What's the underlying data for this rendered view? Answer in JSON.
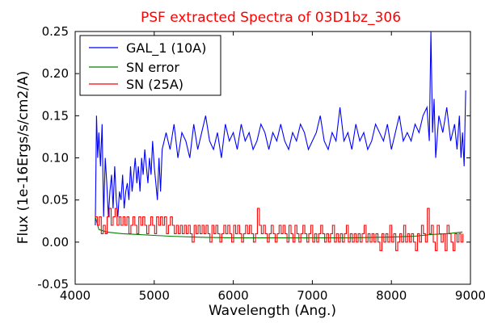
{
  "chart_data": {
    "type": "line",
    "title": "PSF extracted Spectra of 03D1bz_306",
    "title_color": "#ff0000",
    "xlabel": "Wavelength (Ang.)",
    "ylabel": "Flux (1e-16Ergs/s/cm2/A)",
    "xlim": [
      4000,
      9000
    ],
    "ylim": [
      -0.05,
      0.25
    ],
    "x_ticks": [
      4000,
      5000,
      6000,
      7000,
      8000,
      9000
    ],
    "y_ticks": [
      -0.05,
      0.0,
      0.05,
      0.1,
      0.15,
      0.2,
      0.25
    ],
    "x_tick_labels": [
      "4000",
      "5000",
      "6000",
      "7000",
      "8000",
      "9000"
    ],
    "y_tick_labels": [
      "-0.05",
      "0.00",
      "0.05",
      "0.10",
      "0.15",
      "0.20",
      "0.25"
    ],
    "grid": false,
    "legend_placement": "top-left",
    "series": [
      {
        "name": "GAL_1 (10A)",
        "color": "#0000ff",
        "step": false,
        "x": [
          4255,
          4270,
          4285,
          4300,
          4320,
          4340,
          4360,
          4380,
          4400,
          4420,
          4440,
          4460,
          4480,
          4500,
          4520,
          4540,
          4560,
          4580,
          4600,
          4620,
          4640,
          4660,
          4680,
          4700,
          4720,
          4740,
          4760,
          4780,
          4800,
          4820,
          4840,
          4860,
          4880,
          4900,
          4920,
          4940,
          4960,
          4980,
          5000,
          5020,
          5040,
          5060,
          5080,
          5100,
          5150,
          5200,
          5250,
          5300,
          5350,
          5400,
          5450,
          5500,
          5550,
          5600,
          5650,
          5700,
          5750,
          5800,
          5850,
          5900,
          5950,
          6000,
          6050,
          6100,
          6150,
          6200,
          6250,
          6300,
          6350,
          6400,
          6450,
          6500,
          6550,
          6600,
          6650,
          6700,
          6750,
          6800,
          6850,
          6900,
          6950,
          7000,
          7050,
          7100,
          7150,
          7200,
          7250,
          7300,
          7350,
          7400,
          7450,
          7500,
          7550,
          7600,
          7650,
          7700,
          7750,
          7800,
          7850,
          7900,
          7950,
          8000,
          8050,
          8100,
          8150,
          8200,
          8250,
          8300,
          8350,
          8400,
          8450,
          8480,
          8500,
          8520,
          8540,
          8560,
          8600,
          8650,
          8700,
          8750,
          8800,
          8830,
          8860,
          8880,
          8900,
          8920,
          8940
        ],
        "values": [
          0.02,
          0.15,
          0.1,
          0.13,
          0.09,
          0.14,
          0.03,
          0.1,
          0.07,
          0.03,
          0.06,
          0.08,
          0.04,
          0.09,
          0.05,
          0.03,
          0.06,
          0.05,
          0.08,
          0.04,
          0.06,
          0.07,
          0.05,
          0.09,
          0.06,
          0.08,
          0.1,
          0.07,
          0.09,
          0.06,
          0.1,
          0.08,
          0.11,
          0.09,
          0.07,
          0.1,
          0.08,
          0.12,
          0.09,
          0.07,
          0.05,
          0.1,
          0.06,
          0.11,
          0.13,
          0.11,
          0.14,
          0.1,
          0.13,
          0.12,
          0.1,
          0.14,
          0.11,
          0.13,
          0.15,
          0.12,
          0.11,
          0.13,
          0.1,
          0.14,
          0.12,
          0.13,
          0.11,
          0.14,
          0.12,
          0.13,
          0.11,
          0.12,
          0.14,
          0.13,
          0.11,
          0.13,
          0.12,
          0.14,
          0.12,
          0.11,
          0.13,
          0.12,
          0.14,
          0.13,
          0.11,
          0.12,
          0.13,
          0.15,
          0.12,
          0.11,
          0.13,
          0.12,
          0.16,
          0.12,
          0.13,
          0.11,
          0.14,
          0.12,
          0.13,
          0.11,
          0.12,
          0.14,
          0.13,
          0.12,
          0.14,
          0.11,
          0.13,
          0.15,
          0.12,
          0.13,
          0.12,
          0.14,
          0.13,
          0.15,
          0.16,
          0.12,
          0.25,
          0.13,
          0.17,
          0.1,
          0.15,
          0.13,
          0.16,
          0.12,
          0.14,
          0.11,
          0.15,
          0.1,
          0.13,
          0.09,
          0.18
        ],
        "legend_label": "GAL_1 (10A)"
      },
      {
        "name": "SN error",
        "color": "#008000",
        "step": false,
        "x": [
          4255,
          4300,
          4400,
          4500,
          4600,
          4800,
          5000,
          5200,
          5500,
          6000,
          6500,
          7000,
          7500,
          8000,
          8300,
          8500,
          8700,
          8900
        ],
        "values": [
          0.03,
          0.015,
          0.012,
          0.011,
          0.01,
          0.009,
          0.008,
          0.007,
          0.006,
          0.005,
          0.005,
          0.005,
          0.005,
          0.006,
          0.007,
          0.009,
          0.01,
          0.012
        ],
        "legend_label": "SN error"
      },
      {
        "name": "SN (25A)",
        "color": "#ff0000",
        "step": true,
        "x": [
          4255,
          4280,
          4305,
          4330,
          4355,
          4380,
          4405,
          4430,
          4455,
          4480,
          4505,
          4530,
          4555,
          4580,
          4605,
          4630,
          4655,
          4680,
          4705,
          4730,
          4755,
          4780,
          4805,
          4830,
          4855,
          4880,
          4905,
          4930,
          4955,
          4980,
          5005,
          5030,
          5055,
          5080,
          5105,
          5130,
          5155,
          5180,
          5205,
          5230,
          5255,
          5280,
          5305,
          5330,
          5355,
          5380,
          5405,
          5430,
          5455,
          5480,
          5505,
          5530,
          5555,
          5580,
          5605,
          5630,
          5655,
          5680,
          5705,
          5730,
          5755,
          5780,
          5805,
          5830,
          5855,
          5880,
          5905,
          5930,
          5955,
          5980,
          6005,
          6030,
          6055,
          6080,
          6105,
          6130,
          6155,
          6180,
          6205,
          6230,
          6255,
          6280,
          6305,
          6330,
          6355,
          6380,
          6405,
          6430,
          6455,
          6480,
          6505,
          6530,
          6555,
          6580,
          6605,
          6630,
          6655,
          6680,
          6705,
          6730,
          6755,
          6780,
          6805,
          6830,
          6855,
          6880,
          6905,
          6930,
          6955,
          6980,
          7005,
          7030,
          7055,
          7080,
          7105,
          7130,
          7155,
          7180,
          7205,
          7230,
          7255,
          7280,
          7305,
          7330,
          7355,
          7380,
          7405,
          7430,
          7455,
          7480,
          7505,
          7530,
          7555,
          7580,
          7605,
          7630,
          7655,
          7680,
          7705,
          7730,
          7755,
          7780,
          7805,
          7830,
          7855,
          7880,
          7905,
          7930,
          7955,
          7980,
          8005,
          8030,
          8055,
          8080,
          8105,
          8130,
          8155,
          8180,
          8205,
          8230,
          8255,
          8280,
          8305,
          8330,
          8355,
          8380,
          8405,
          8430,
          8455,
          8480,
          8505,
          8530,
          8555,
          8580,
          8605,
          8630,
          8655,
          8680,
          8705,
          8730,
          8755,
          8780,
          8805,
          8830,
          8855,
          8880,
          8905
        ],
        "values": [
          0.03,
          0.02,
          0.03,
          0.01,
          0.02,
          0.01,
          0.03,
          0.04,
          0.02,
          0.03,
          0.04,
          0.02,
          0.03,
          0.02,
          0.03,
          0.02,
          0.03,
          0.01,
          0.02,
          0.03,
          0.02,
          0.01,
          0.03,
          0.02,
          0.03,
          0.02,
          0.01,
          0.02,
          0.03,
          0.02,
          0.01,
          0.03,
          0.02,
          0.03,
          0.02,
          0.03,
          0.01,
          0.02,
          0.03,
          0.02,
          0.01,
          0.02,
          0.01,
          0.02,
          0.01,
          0.02,
          0.01,
          0.02,
          0.01,
          0.0,
          0.02,
          0.01,
          0.02,
          0.01,
          0.02,
          0.01,
          0.02,
          0.01,
          0.0,
          0.02,
          0.01,
          0.02,
          0.01,
          0.0,
          0.01,
          0.02,
          0.01,
          0.02,
          0.01,
          0.0,
          0.02,
          0.01,
          0.02,
          0.01,
          0.0,
          0.01,
          0.02,
          0.01,
          0.02,
          0.01,
          0.0,
          0.01,
          0.04,
          0.02,
          0.01,
          0.02,
          0.01,
          0.0,
          0.01,
          0.02,
          0.01,
          0.0,
          0.01,
          0.02,
          0.01,
          0.02,
          0.01,
          0.0,
          0.02,
          0.01,
          0.0,
          0.02,
          0.01,
          0.0,
          0.01,
          0.02,
          0.01,
          0.0,
          0.01,
          0.02,
          0.0,
          0.01,
          0.0,
          0.01,
          0.02,
          0.01,
          0.0,
          0.01,
          0.0,
          0.01,
          0.02,
          0.0,
          0.01,
          0.0,
          0.01,
          0.0,
          0.01,
          0.02,
          0.0,
          0.01,
          0.0,
          0.01,
          0.0,
          0.01,
          0.0,
          0.01,
          0.02,
          0.0,
          0.01,
          0.0,
          0.01,
          0.0,
          0.01,
          0.0,
          -0.01,
          0.01,
          0.0,
          0.01,
          0.0,
          0.02,
          0.0,
          0.01,
          -0.01,
          0.0,
          0.01,
          0.0,
          0.02,
          0.0,
          0.01,
          0.0,
          0.01,
          0.0,
          -0.01,
          0.01,
          0.0,
          0.02,
          0.01,
          0.0,
          0.04,
          0.01,
          0.02,
          0.0,
          -0.01,
          0.02,
          0.01,
          0.0,
          0.01,
          -0.01,
          0.02,
          0.01,
          0.0,
          -0.01,
          0.01,
          0.0,
          0.01,
          0.0,
          0.01
        ],
        "legend_label": "SN (25A)"
      }
    ]
  }
}
